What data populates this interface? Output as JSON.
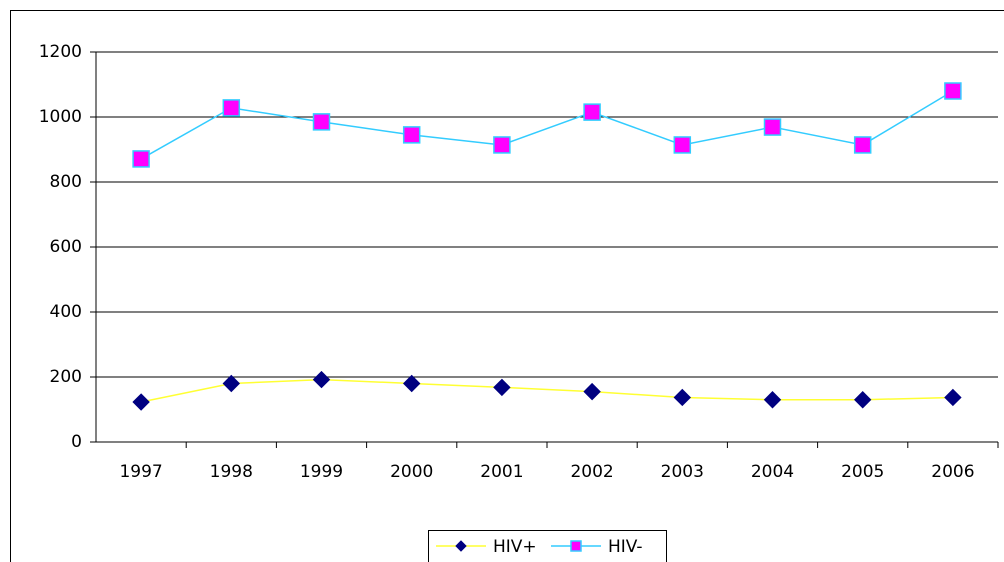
{
  "chart_data": {
    "type": "line",
    "categories": [
      "1997",
      "1998",
      "1999",
      "2000",
      "2001",
      "2002",
      "2003",
      "2004",
      "2005",
      "2006"
    ],
    "series": [
      {
        "name": "HIV+",
        "color": "#ffff33",
        "marker_color": "#000080",
        "marker": "diamond",
        "values": [
          123,
          180,
          192,
          180,
          168,
          155,
          137,
          130,
          130,
          137
        ]
      },
      {
        "name": "HIV-",
        "color": "#33ccff",
        "marker_color": "#ff00ff",
        "marker": "square",
        "values": [
          871,
          1028,
          985,
          945,
          914,
          1015,
          914,
          969,
          914,
          1080
        ]
      }
    ],
    "ylim": [
      0,
      1200
    ],
    "yticks": [
      0,
      200,
      400,
      600,
      800,
      1000,
      1200
    ],
    "grid": true,
    "legend": "bottom"
  }
}
